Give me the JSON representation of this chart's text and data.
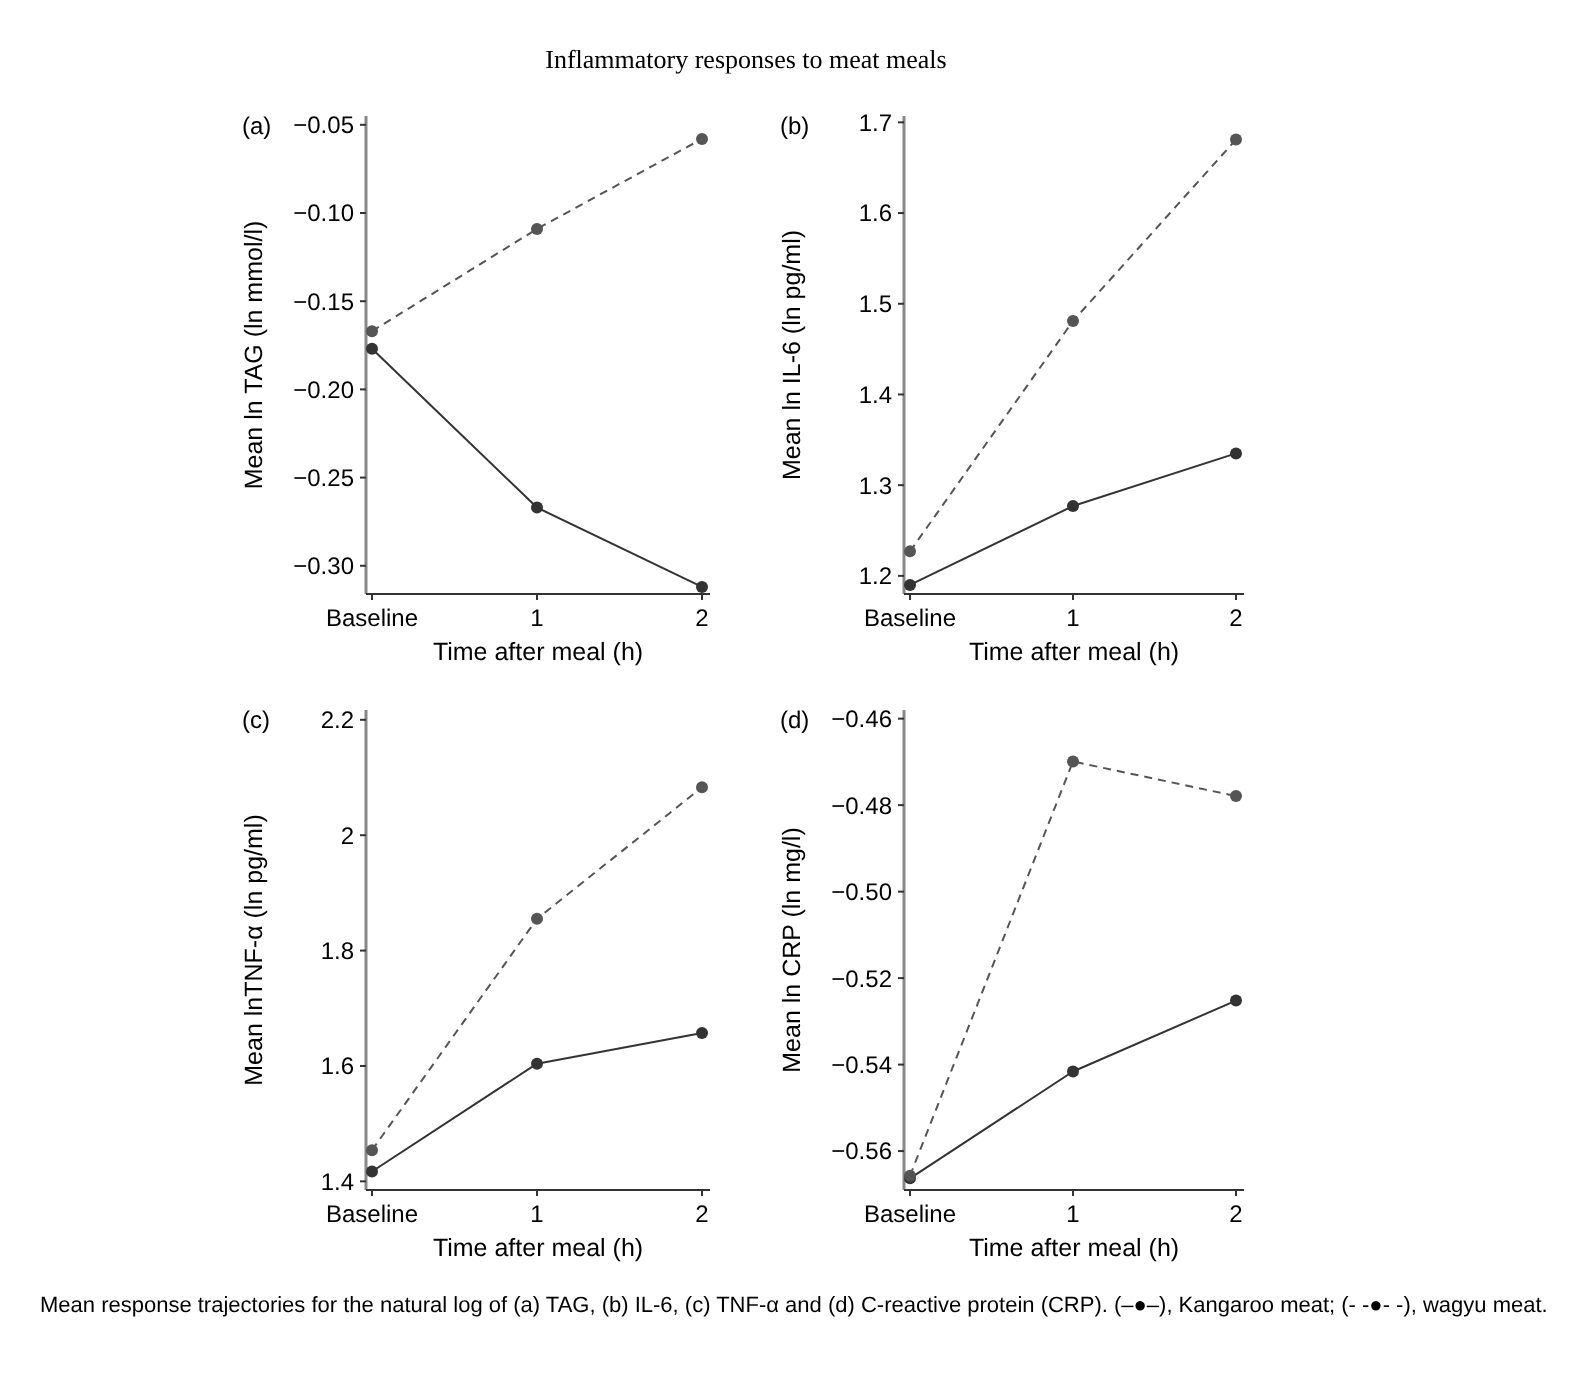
{
  "chart_data": [
    {
      "type": "line",
      "title": "(a)",
      "annotations": [
        "Inflammatory responses to meat meals"
      ],
      "xlabel": "Time after meal (h)",
      "ylabel": "Mean ln TAG (ln mmol/l)",
      "categories": [
        "Baseline",
        "1",
        "2"
      ],
      "ylim": [
        -0.316,
        -0.045
      ],
      "yticks": [
        {
          "value": -0.3,
          "label": "−0.30"
        },
        {
          "value": -0.25,
          "label": "−0.25"
        },
        {
          "value": -0.2,
          "label": "−0.20"
        },
        {
          "value": -0.15,
          "label": "−0.15"
        },
        {
          "value": -0.1,
          "label": "−0.10"
        },
        {
          "value": -0.05,
          "label": "−0.05"
        }
      ],
      "grid": false,
      "marker": "circle",
      "series": [
        {
          "color": "#333333",
          "line_style": "solid",
          "values": [
            -0.177,
            -0.267,
            -0.312
          ]
        },
        {
          "color": "#555555",
          "line_style": "dashed",
          "values": [
            -0.167,
            -0.109,
            -0.058
          ]
        }
      ]
    },
    {
      "type": "line",
      "title": "(b)",
      "xlabel": "Time after meal (h)",
      "ylabel": "Mean ln IL-6 (ln pg/ml)",
      "categories": [
        "Baseline",
        "1",
        "2"
      ],
      "ylim": [
        1.18,
        1.707
      ],
      "yticks": [
        1.2,
        1.3,
        1.4,
        1.5,
        1.6,
        1.7
      ],
      "grid": false,
      "marker": "circle",
      "series": [
        {
          "color": "#333333",
          "line_style": "solid",
          "values": [
            1.19,
            1.277,
            1.335
          ]
        },
        {
          "color": "#555555",
          "line_style": "dashed",
          "values": [
            1.227,
            1.481,
            1.681
          ]
        }
      ]
    },
    {
      "type": "line",
      "title": "(c)",
      "xlabel": "Time after meal (h)",
      "ylabel": "Mean lnTNF-α (ln pg/ml)",
      "categories": [
        "Baseline",
        "1",
        "2"
      ],
      "ylim": [
        1.385,
        2.217
      ],
      "yticks": [
        1.4,
        1.6,
        1.8,
        2,
        2.2
      ],
      "grid": false,
      "marker": "circle",
      "series": [
        {
          "color": "#333333",
          "line_style": "solid",
          "values": [
            1.417,
            1.604,
            1.657
          ]
        },
        {
          "color": "#555555",
          "line_style": "dashed",
          "values": [
            1.454,
            1.855,
            2.083
          ]
        }
      ]
    },
    {
      "type": "line",
      "title": "(d)",
      "annotations": [
        "Mean response trajectories for the natural log of (a) TAG, (b) IL-6, (c) TNF-α and (d) C-reactive protein (CRP). (–●–), Kangaroo meat; (- -●- -), wagyu meat."
      ],
      "xlabel": "Time after meal (h)",
      "ylabel": "Mean ln CRP (ln mg/l)",
      "categories": [
        "Baseline",
        "1",
        "2"
      ],
      "ylim": [
        -0.569,
        -0.458
      ],
      "yticks": [
        {
          "value": -0.56,
          "label": "−0.56"
        },
        {
          "value": -0.54,
          "label": "−0.54"
        },
        {
          "value": -0.52,
          "label": "−0.52"
        },
        {
          "value": -0.5,
          "label": "−0.50"
        },
        {
          "value": -0.48,
          "label": "−0.48"
        },
        {
          "value": -0.46,
          "label": "−0.46"
        }
      ],
      "grid": false,
      "marker": "circle",
      "series": [
        {
          "color": "#333333",
          "line_style": "solid",
          "values": [
            -0.5663,
            -0.5416,
            -0.5252
          ]
        },
        {
          "color": "#555555",
          "line_style": "dashed",
          "values": [
            -0.5657,
            -0.4699,
            -0.4779
          ]
        }
      ]
    }
  ]
}
